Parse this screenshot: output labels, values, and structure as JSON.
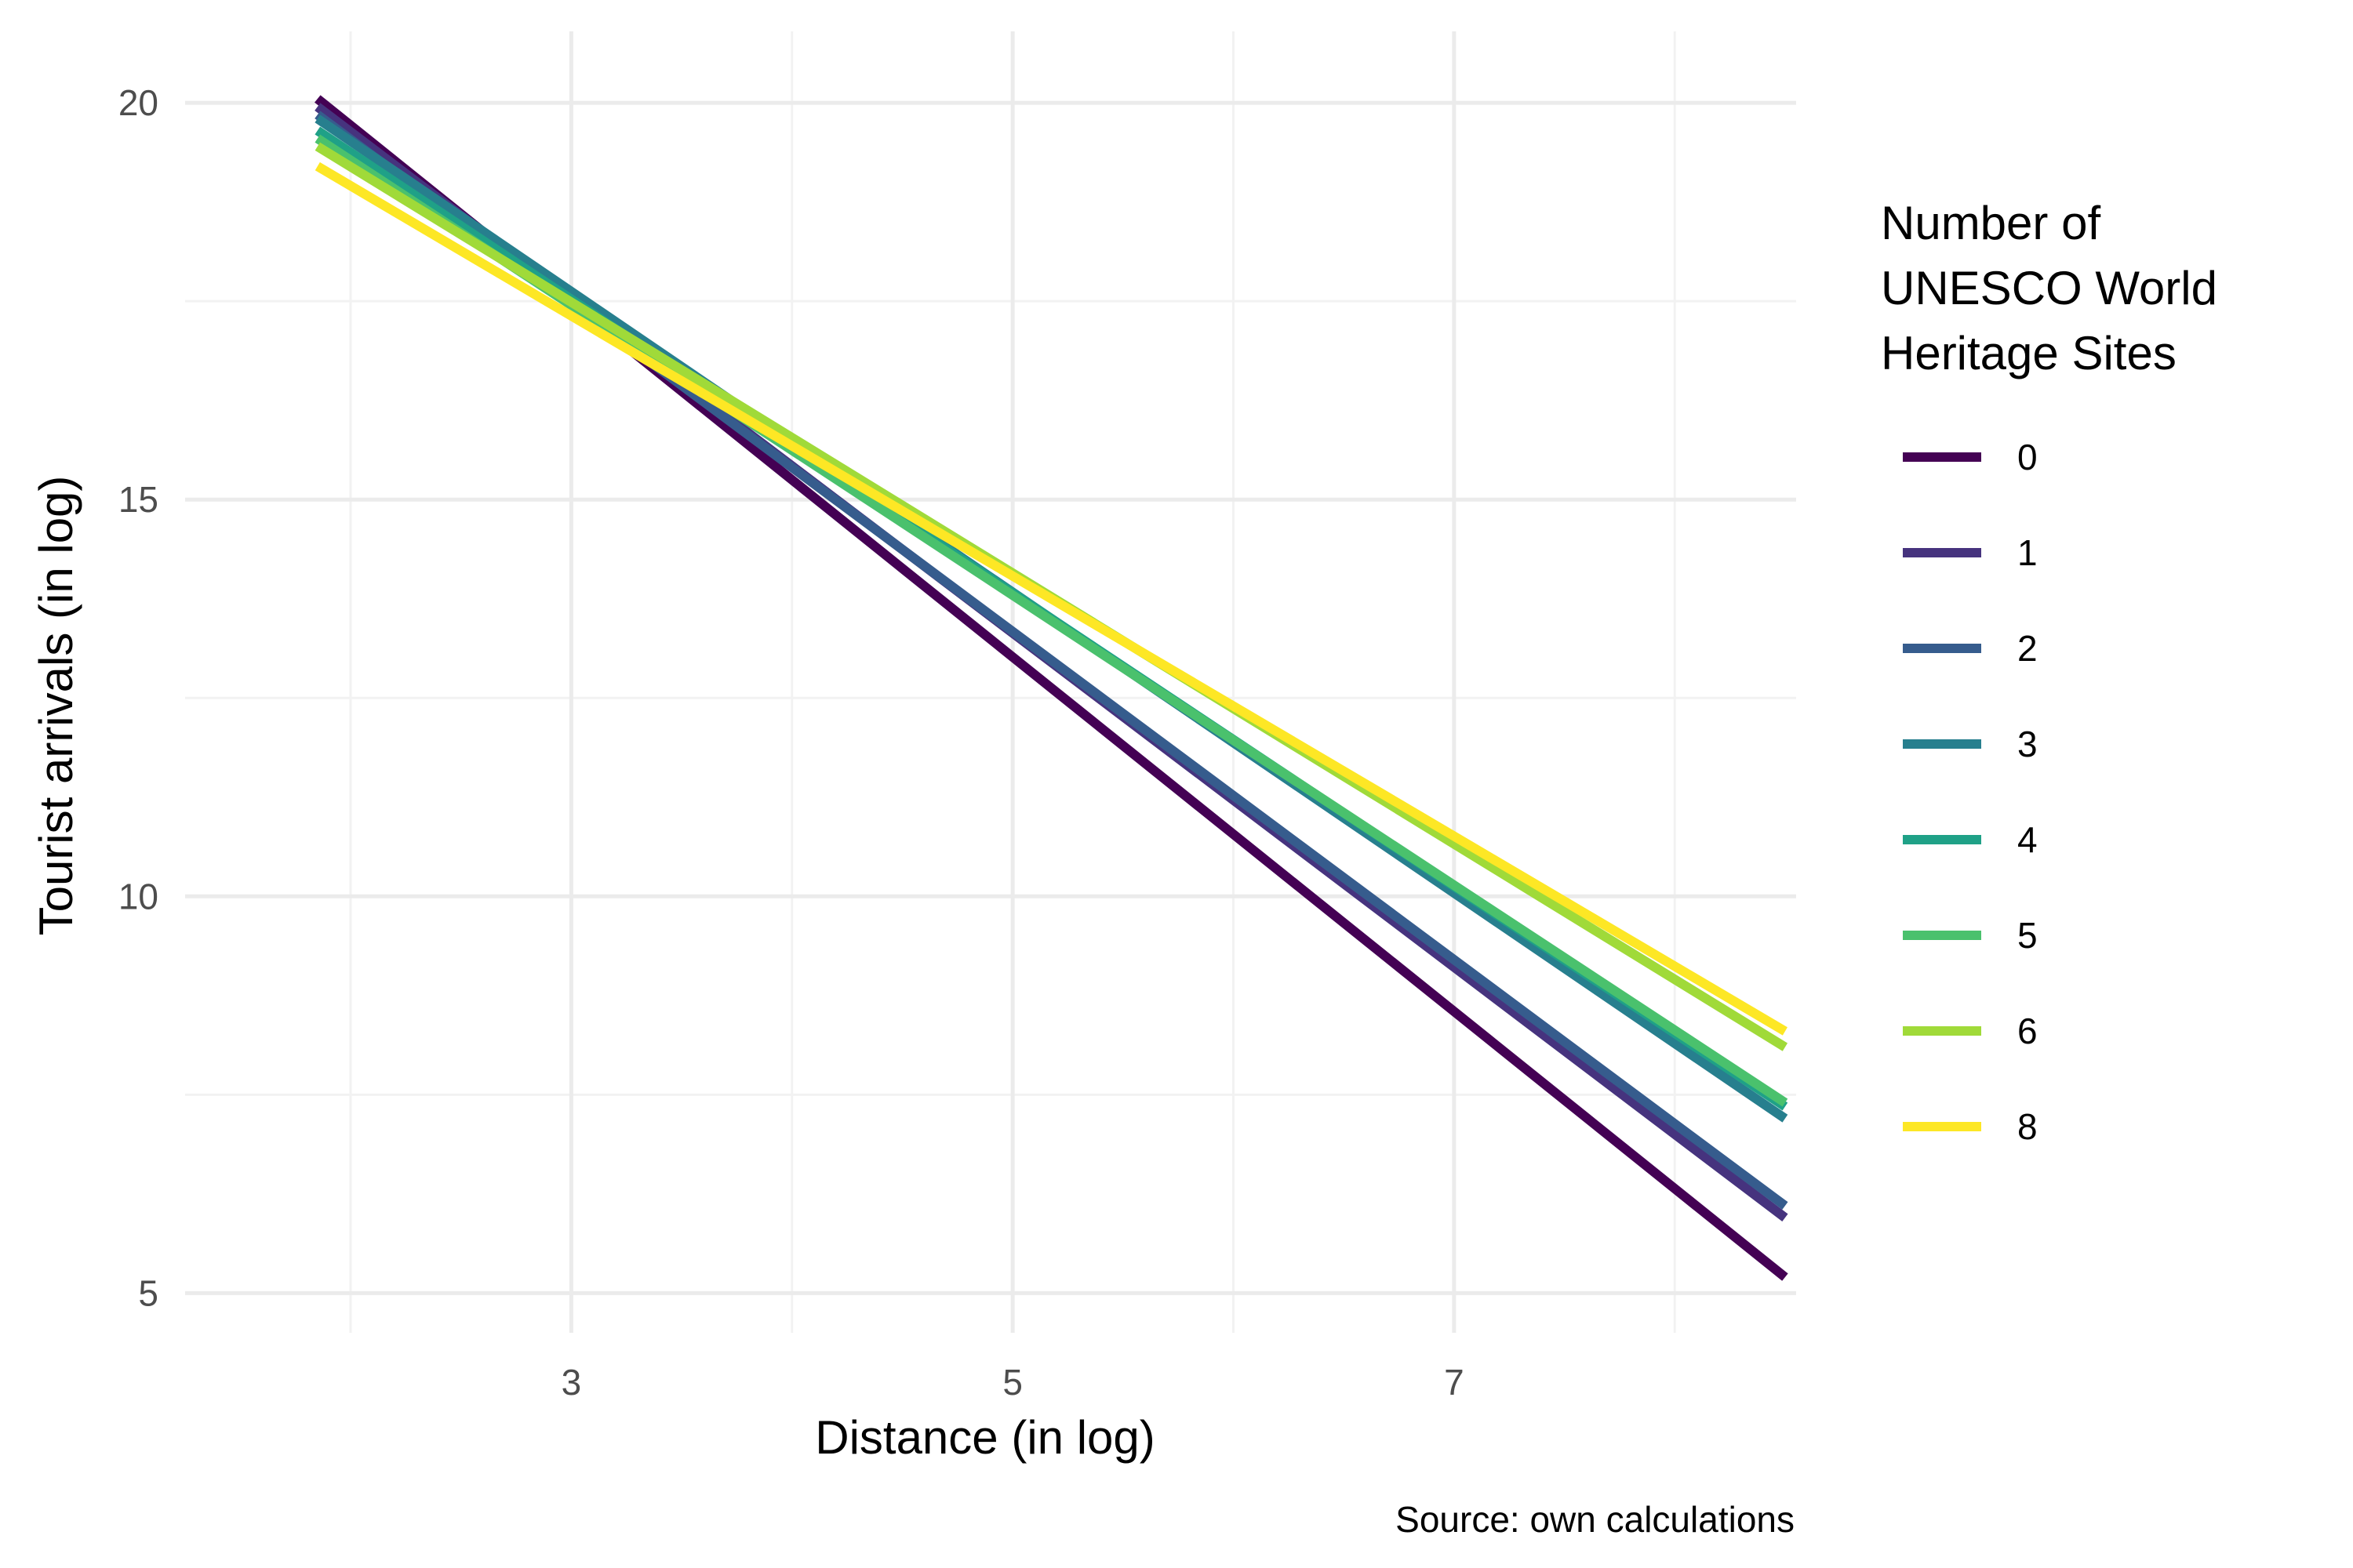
{
  "chart_data": {
    "type": "line",
    "title": "",
    "xlabel": "Distance (in log)",
    "ylabel": "Tourist arrivals (in log)",
    "caption": "Source: own calculations",
    "xlim": [
      1.25,
      8.55
    ],
    "ylim": [
      4.5,
      20.9
    ],
    "x_ticks": [
      3,
      5,
      7
    ],
    "x_minor_ticks": [
      2,
      4,
      6,
      8
    ],
    "y_ticks": [
      5,
      10,
      15,
      20
    ],
    "y_minor_ticks": [
      7.5,
      12.5,
      17.5
    ],
    "grid": true,
    "legend": {
      "title_lines": [
        "Number of",
        "UNESCO World",
        "Heritage Sites"
      ],
      "position": "right"
    },
    "series": [
      {
        "name": "0",
        "color": "#440154",
        "x": [
          1.85,
          8.5
        ],
        "y": [
          20.05,
          5.2
        ]
      },
      {
        "name": "1",
        "color": "#46337e",
        "x": [
          1.85,
          8.5
        ],
        "y": [
          19.95,
          5.95
        ]
      },
      {
        "name": "2",
        "color": "#365c8d",
        "x": [
          1.85,
          8.5
        ],
        "y": [
          19.85,
          6.1
        ]
      },
      {
        "name": "3",
        "color": "#277f8e",
        "x": [
          1.85,
          8.5
        ],
        "y": [
          19.8,
          7.2
        ]
      },
      {
        "name": "4",
        "color": "#1fa187",
        "x": [
          1.85,
          8.5
        ],
        "y": [
          19.65,
          7.35
        ]
      },
      {
        "name": "5",
        "color": "#4ac16d",
        "x": [
          1.85,
          8.5
        ],
        "y": [
          19.55,
          7.4
        ]
      },
      {
        "name": "6",
        "color": "#a0da39",
        "x": [
          1.85,
          8.5
        ],
        "y": [
          19.45,
          8.1
        ]
      },
      {
        "name": "8",
        "color": "#fde725",
        "x": [
          1.85,
          8.5
        ],
        "y": [
          19.2,
          8.3
        ]
      }
    ]
  }
}
